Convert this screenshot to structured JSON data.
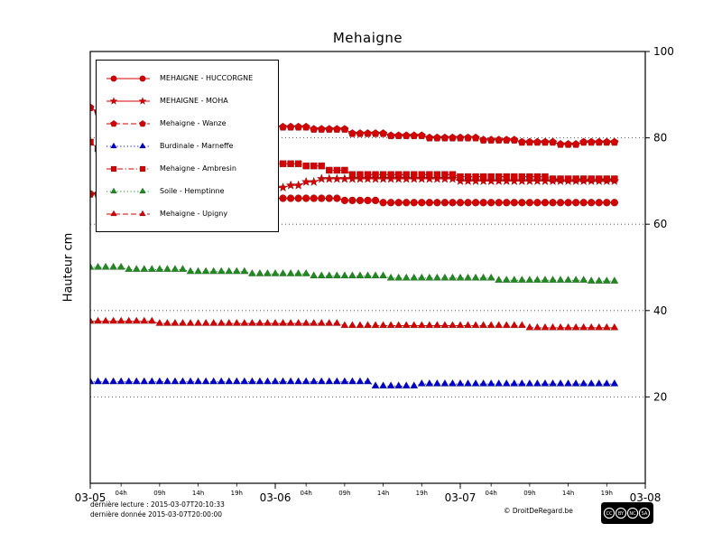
{
  "chart_data": {
    "type": "line",
    "title": "Mehaigne",
    "ylabel": "Hauteur cm",
    "xlabel": "",
    "x_unit": "hours since 2015-03-05 00:00",
    "x_range": [
      0,
      72
    ],
    "y_range": [
      0,
      100
    ],
    "y_ticks": [
      20,
      40,
      60,
      80,
      100
    ],
    "y_gridlines": [
      20,
      40,
      60,
      80
    ],
    "x_ticks_major": [
      {
        "pos": 0,
        "label": "03-05"
      },
      {
        "pos": 24,
        "label": "03-06"
      },
      {
        "pos": 48,
        "label": "03-07"
      },
      {
        "pos": 72,
        "label": "03-08"
      }
    ],
    "x_ticks_minor": [
      {
        "pos": 4,
        "label": "04h"
      },
      {
        "pos": 9,
        "label": "09h"
      },
      {
        "pos": 14,
        "label": "14h"
      },
      {
        "pos": 19,
        "label": "19h"
      },
      {
        "pos": 28,
        "label": "04h"
      },
      {
        "pos": 33,
        "label": "09h"
      },
      {
        "pos": 38,
        "label": "14h"
      },
      {
        "pos": 43,
        "label": "19h"
      },
      {
        "pos": 52,
        "label": "04h"
      },
      {
        "pos": 57,
        "label": "09h"
      },
      {
        "pos": 62,
        "label": "14h"
      },
      {
        "pos": 67,
        "label": "19h"
      }
    ],
    "legend_position": "upper-left",
    "grid": "horizontal-dotted",
    "series": [
      {
        "name": "MEHAIGNE - HUCCORGNE",
        "color": "#d40000",
        "marker": "circle",
        "line_style": "solid",
        "x_step_hours": 1,
        "values": [
          67,
          67,
          67,
          67,
          67,
          67,
          66.5,
          66.5,
          66.5,
          66.5,
          66.5,
          66.5,
          66.5,
          66.5,
          66.5,
          66.5,
          66.5,
          66,
          66,
          66,
          66,
          66,
          66,
          66,
          66,
          66,
          66,
          66,
          66,
          66,
          66,
          66,
          66,
          65.5,
          65.5,
          65.5,
          65.5,
          65.5,
          65,
          65,
          65,
          65,
          65,
          65,
          65,
          65,
          65,
          65,
          65,
          65,
          65,
          65,
          65,
          65,
          65,
          65,
          65,
          65,
          65,
          65,
          65,
          65,
          65,
          65,
          65,
          65,
          65,
          65,
          65
        ]
      },
      {
        "name": "MEHAIGNE - MOHA",
        "color": "#d40000",
        "marker": "star",
        "line_style": "solid",
        "x_step_hours": 1,
        "values": [
          67,
          67,
          67,
          67,
          67,
          67,
          67,
          67,
          67,
          67,
          67.5,
          67.5,
          67.5,
          67.5,
          67.5,
          67.5,
          67.5,
          67.5,
          68,
          68,
          68,
          68,
          68,
          68,
          68.5,
          68.5,
          69,
          69,
          69.8,
          69.8,
          70.5,
          70.5,
          70.5,
          70.5,
          70.5,
          70.5,
          70.5,
          70.5,
          70.5,
          70.5,
          70.5,
          70.5,
          70.5,
          70.5,
          70.5,
          70.5,
          70.5,
          70.5,
          70,
          70,
          70,
          70,
          70,
          70,
          70,
          70,
          70,
          70,
          70,
          70,
          70,
          70,
          70,
          70,
          70,
          70,
          70,
          70,
          70
        ]
      },
      {
        "name": "Mehaigne - Wanze",
        "color": "#d40000",
        "marker": "pentagon",
        "line_style": "dashed",
        "x_step_hours": 1,
        "values": [
          87,
          86,
          86,
          85,
          85,
          85,
          85,
          85,
          85,
          84,
          84,
          84,
          84,
          84,
          84,
          83.5,
          83.5,
          83.5,
          83.5,
          83.5,
          83.5,
          82.5,
          82.5,
          82.5,
          82.5,
          82.5,
          82.5,
          82.5,
          82.5,
          82,
          82,
          82,
          82,
          82,
          81,
          81,
          81,
          81,
          81,
          80.5,
          80.5,
          80.5,
          80.5,
          80.5,
          80,
          80,
          80,
          80,
          80,
          80,
          80,
          79.5,
          79.5,
          79.5,
          79.5,
          79.5,
          79,
          79,
          79,
          79,
          79,
          78.5,
          78.5,
          78.5,
          79,
          79,
          79,
          79,
          79
        ]
      },
      {
        "name": "Burdinale - Marneffe",
        "color": "#0000cc",
        "marker": "triangle",
        "line_style": "dotted",
        "x_step_hours": 1,
        "values": [
          23.5,
          23.5,
          23.5,
          23.5,
          23.5,
          23.5,
          23.5,
          23.5,
          23.5,
          23.5,
          23.5,
          23.5,
          23.5,
          23.5,
          23.5,
          23.5,
          23.5,
          23.5,
          23.5,
          23.5,
          23.5,
          23.5,
          23.5,
          23.5,
          23.5,
          23.5,
          23.5,
          23.5,
          23.5,
          23.5,
          23.5,
          23.5,
          23.5,
          23.5,
          23.5,
          23.5,
          23.5,
          22.5,
          22.5,
          22.5,
          22.5,
          22.5,
          22.5,
          23,
          23,
          23,
          23,
          23,
          23,
          23,
          23,
          23,
          23,
          23,
          23,
          23,
          23,
          23,
          23,
          23,
          23,
          23,
          23,
          23,
          23,
          23,
          23,
          23,
          23
        ]
      },
      {
        "name": "Mehaigne - Ambresin",
        "color": "#d40000",
        "marker": "square",
        "line_style": "dashdot",
        "x_step_hours": 1,
        "values": [
          79,
          77.5,
          77.5,
          77.5,
          77.5,
          76.5,
          76.5,
          76.5,
          76.5,
          76.5,
          75.5,
          75.5,
          75.5,
          75.5,
          75.5,
          74.5,
          74.5,
          74.5,
          74.5,
          74.5,
          74,
          74,
          74,
          74,
          74,
          74,
          74,
          74,
          73.5,
          73.5,
          73.5,
          72.5,
          72.5,
          72.5,
          71.5,
          71.5,
          71.5,
          71.5,
          71.5,
          71.5,
          71.5,
          71.5,
          71.5,
          71.5,
          71.5,
          71.5,
          71.5,
          71.5,
          71,
          71,
          71,
          71,
          71,
          71,
          71,
          71,
          71,
          71,
          71,
          71,
          70.5,
          70.5,
          70.5,
          70.5,
          70.5,
          70.5,
          70.5,
          70.5,
          70.5
        ]
      },
      {
        "name": "Soile - Hemptinne",
        "color": "#1f8a1f",
        "marker": "triangle",
        "line_style": "dotted",
        "x_step_hours": 1,
        "values": [
          50,
          50,
          50,
          50,
          50,
          49.5,
          49.5,
          49.5,
          49.5,
          49.5,
          49.5,
          49.5,
          49.5,
          49,
          49,
          49,
          49,
          49,
          49,
          49,
          49,
          48.5,
          48.5,
          48.5,
          48.5,
          48.5,
          48.5,
          48.5,
          48.5,
          48,
          48,
          48,
          48,
          48,
          48,
          48,
          48,
          48,
          48,
          47.5,
          47.5,
          47.5,
          47.5,
          47.5,
          47.5,
          47.5,
          47.5,
          47.5,
          47.5,
          47.5,
          47.5,
          47.5,
          47.5,
          47,
          47,
          47,
          47,
          47,
          47,
          47,
          47,
          47,
          47,
          47,
          47,
          46.8,
          46.8,
          46.8,
          46.8
        ]
      },
      {
        "name": "Mehaigne - Upigny",
        "color": "#d40000",
        "marker": "triangle",
        "line_style": "dashed",
        "x_step_hours": 1,
        "values": [
          37.5,
          37.5,
          37.5,
          37.5,
          37.5,
          37.5,
          37.5,
          37.5,
          37.5,
          37,
          37,
          37,
          37,
          37,
          37,
          37,
          37,
          37,
          37,
          37,
          37,
          37,
          37,
          37,
          37,
          37,
          37,
          37,
          37,
          37,
          37,
          37,
          37,
          36.5,
          36.5,
          36.5,
          36.5,
          36.5,
          36.5,
          36.5,
          36.5,
          36.5,
          36.5,
          36.5,
          36.5,
          36.5,
          36.5,
          36.5,
          36.5,
          36.5,
          36.5,
          36.5,
          36.5,
          36.5,
          36.5,
          36.5,
          36.5,
          36,
          36,
          36,
          36,
          36,
          36,
          36,
          36,
          36,
          36,
          36,
          36
        ]
      }
    ]
  },
  "footer": {
    "last_reading": "dernière lecture : 2015-03-07T20:10:33",
    "last_data": "dernière donnée  2015-03-07T20:00:00",
    "copyright": "© DroitDeRegard.be"
  },
  "license": {
    "badge": "CC BY-NC-SA",
    "letters": [
      "CC",
      "BY",
      "NC",
      "SA"
    ]
  }
}
